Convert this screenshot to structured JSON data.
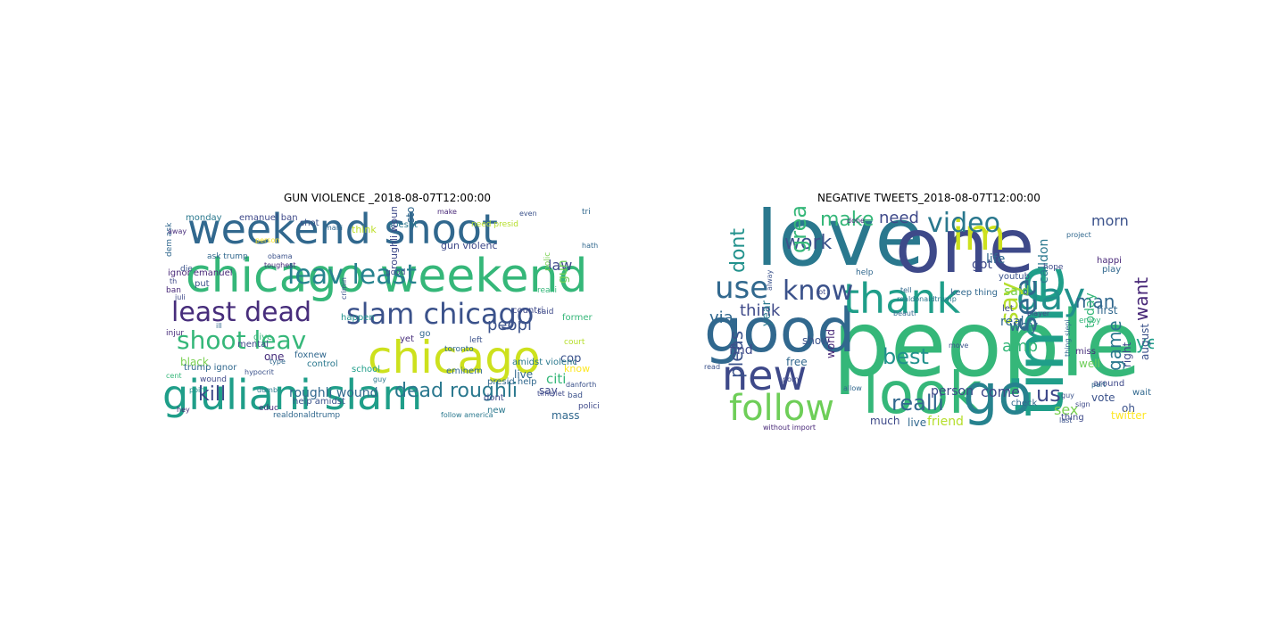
{
  "panels": [
    {
      "title": "GUN VIOLENCE _2018-08-07T12:00:00",
      "words": [
        {
          "t": "weekend shoot",
          "c": "#31688e"
        },
        {
          "t": "chicago weekend",
          "c": "#35b779"
        },
        {
          "t": "chicago",
          "c": "#cde11d"
        },
        {
          "t": "giuliani slam",
          "c": "#1f9e89"
        },
        {
          "t": "slam chicago",
          "c": "#3b528b"
        },
        {
          "t": "leav least",
          "c": "#26828e"
        },
        {
          "t": "least dead",
          "c": "#472d7b"
        },
        {
          "t": "shoot leav",
          "c": "#35b779"
        },
        {
          "t": "dead roughli",
          "c": "#2a788e"
        },
        {
          "t": "kill",
          "c": "#3e4989"
        },
        {
          "t": "roughli wound",
          "c": "#31688e"
        },
        {
          "t": "peopl",
          "c": "#3b528b"
        },
        {
          "t": "law",
          "c": "#3e4989"
        },
        {
          "t": "gun",
          "c": "#6ece58"
        },
        {
          "t": "cop",
          "c": "#3b528b"
        },
        {
          "t": "citi",
          "c": "#35b779"
        },
        {
          "t": "black",
          "c": "#7ad151"
        },
        {
          "t": "happen",
          "c": "#21918c"
        },
        {
          "t": "control",
          "c": "#2a788e"
        },
        {
          "t": "foxnew",
          "c": "#31688e"
        },
        {
          "t": "one",
          "c": "#472d7b"
        },
        {
          "t": "school",
          "c": "#1f9e89"
        },
        {
          "t": "live",
          "c": "#31688e"
        },
        {
          "t": "say",
          "c": "#3e4989"
        },
        {
          "t": "mass",
          "c": "#31688e"
        },
        {
          "t": "monday",
          "c": "#2a788e"
        },
        {
          "t": "emanuel ban",
          "c": "#3e4989"
        },
        {
          "t": "shot",
          "c": "#3b528b"
        },
        {
          "t": "think",
          "c": "#bddf26"
        },
        {
          "t": "doesnt",
          "c": "#2a788e"
        },
        {
          "t": "need presid",
          "c": "#b5de2b"
        },
        {
          "t": "stop",
          "c": "#31688e"
        },
        {
          "t": "gun violenc",
          "c": "#3e4989"
        },
        {
          "t": "ask trump",
          "c": "#31688e"
        },
        {
          "t": "obama",
          "c": "#3b528b"
        },
        {
          "t": "toughest",
          "c": "#472d7b"
        },
        {
          "t": "ignor emanuel",
          "c": "#482878"
        },
        {
          "t": "put",
          "c": "#3b528b"
        },
        {
          "t": "give",
          "c": "#35b779"
        },
        {
          "t": "mental",
          "c": "#3e4989"
        },
        {
          "t": "trump ignor",
          "c": "#31688e"
        },
        {
          "t": "wound",
          "c": "#3e4989"
        },
        {
          "t": "help amidst",
          "c": "#3b528b"
        },
        {
          "t": "presid help",
          "c": "#31688e"
        },
        {
          "t": "amidst violenc",
          "c": "#2a788e"
        },
        {
          "t": "yet",
          "c": "#472d7b"
        },
        {
          "t": "toronto",
          "c": "#31688e"
        },
        {
          "t": "left",
          "c": "#3b528b"
        },
        {
          "t": "countri",
          "c": "#3e4989"
        },
        {
          "t": "former",
          "c": "#35b779"
        },
        {
          "t": "eminem",
          "c": "#31688e"
        },
        {
          "t": "dont",
          "c": "#3e4989"
        },
        {
          "t": "new",
          "c": "#2a788e"
        },
        {
          "t": "realli",
          "c": "#35b779"
        },
        {
          "t": "know",
          "c": "#fde725"
        },
        {
          "t": "roughli wounded",
          "c": "#3e4989"
        },
        {
          "t": "dem ask",
          "c": "#31688e"
        },
        {
          "t": "die",
          "c": "#3b528b"
        },
        {
          "t": "ban",
          "c": "#482878"
        },
        {
          "t": "injur",
          "c": "#472d7b"
        },
        {
          "t": "go",
          "c": "#31688e"
        },
        {
          "t": "said",
          "c": "#3e4989"
        },
        {
          "t": "bad",
          "c": "#3b528b"
        },
        {
          "t": "good",
          "c": "#3e4989"
        },
        {
          "t": "educ",
          "c": "#472d7b"
        },
        {
          "t": "realdonaldtrump",
          "c": "#31688e"
        },
        {
          "t": "dumb",
          "c": "#2a788e"
        },
        {
          "t": "hypocrit",
          "c": "#3b528b"
        },
        {
          "t": "point",
          "c": "#21918c"
        },
        {
          "t": "polici",
          "c": "#3e4989"
        },
        {
          "t": "hey",
          "c": "#482878"
        },
        {
          "t": "type",
          "c": "#31688e"
        },
        {
          "t": "time let",
          "c": "#3e4989"
        },
        {
          "t": "cent",
          "c": "#35b779"
        },
        {
          "t": "danforth",
          "c": "#3b528b"
        },
        {
          "t": "follow america",
          "c": "#2a788e"
        },
        {
          "t": "tri",
          "c": "#31688e"
        },
        {
          "t": "th",
          "c": "#3e4989"
        },
        {
          "t": "mani",
          "c": "#31688e"
        },
        {
          "t": "make",
          "c": "#482878"
        },
        {
          "t": "crimin",
          "c": "#3b528b"
        },
        {
          "t": "ill",
          "c": "#31688e"
        },
        {
          "t": "guy",
          "c": "#2a788e"
        },
        {
          "t": "polic",
          "c": "#7ad151"
        },
        {
          "t": "juli",
          "c": "#3e4989"
        },
        {
          "t": "hath",
          "c": "#31688e"
        },
        {
          "t": "court",
          "c": "#b5de2b"
        },
        {
          "t": "person",
          "c": "#fde725"
        },
        {
          "t": "even",
          "c": "#3b528b"
        },
        {
          "t": "away",
          "c": "#472d7b"
        }
      ]
    },
    {
      "title": "NEGATIVE TWEETS_2018-08-07T12:00:00",
      "words": [
        {
          "t": "love",
          "c": "#2a788e"
        },
        {
          "t": "one",
          "c": "#3e4989"
        },
        {
          "t": "people",
          "c": "#35b779"
        },
        {
          "t": "good",
          "c": "#31688e"
        },
        {
          "t": "time",
          "c": "#1f9e89"
        },
        {
          "t": "look",
          "c": "#35b779"
        },
        {
          "t": "new",
          "c": "#3e4989"
        },
        {
          "t": "thank",
          "c": "#1f9e89"
        },
        {
          "t": "go",
          "c": "#26828e"
        },
        {
          "t": "follow",
          "c": "#6ece58"
        },
        {
          "t": "im",
          "c": "#cde11d"
        },
        {
          "t": "day",
          "c": "#21918c"
        },
        {
          "t": "see",
          "c": "#31688e"
        },
        {
          "t": "know",
          "c": "#3b528b"
        },
        {
          "t": "use",
          "c": "#31688e"
        },
        {
          "t": "video",
          "c": "#2a788e"
        },
        {
          "t": "make",
          "c": "#35b779"
        },
        {
          "t": "need",
          "c": "#3e4989"
        },
        {
          "t": "dont",
          "c": "#21918c"
        },
        {
          "t": "work",
          "c": "#3b528b"
        },
        {
          "t": "great",
          "c": "#35b779"
        },
        {
          "t": "think",
          "c": "#3e4989"
        },
        {
          "t": "via",
          "c": "#31688e"
        },
        {
          "t": "say",
          "c": "#b5de2b"
        },
        {
          "t": "want",
          "c": "#482878"
        },
        {
          "t": "man",
          "c": "#31688e"
        },
        {
          "t": "best",
          "c": "#21918c"
        },
        {
          "t": "realli",
          "c": "#31688e"
        },
        {
          "t": "come",
          "c": "#3e4989"
        },
        {
          "t": "pleas",
          "c": "#3b528b"
        },
        {
          "t": "year",
          "c": "#2a788e"
        },
        {
          "t": "find",
          "c": "#3e4989"
        },
        {
          "t": "got",
          "c": "#3e4989"
        },
        {
          "t": "life",
          "c": "#31688e"
        },
        {
          "t": "said",
          "c": "#7ad151"
        },
        {
          "t": "morn",
          "c": "#3b528b"
        },
        {
          "t": "amp",
          "c": "#35b779"
        },
        {
          "t": "way",
          "c": "#31688e"
        },
        {
          "t": "us",
          "c": "#3e4989"
        },
        {
          "t": "sex",
          "c": "#7ad151"
        },
        {
          "t": "vote",
          "c": "#3b528b"
        },
        {
          "t": "game",
          "c": "#2a788e"
        },
        {
          "t": "ye",
          "c": "#1f9e89"
        },
        {
          "t": "well",
          "c": "#6ece58"
        },
        {
          "t": "person",
          "c": "#3e4989"
        },
        {
          "t": "live",
          "c": "#31688e"
        },
        {
          "t": "friend",
          "c": "#b5de2b"
        },
        {
          "t": "much",
          "c": "#3e4989"
        },
        {
          "t": "free",
          "c": "#31688e"
        },
        {
          "t": "show",
          "c": "#3b528b"
        },
        {
          "t": "world",
          "c": "#482878"
        },
        {
          "t": "today",
          "c": "#35b779"
        },
        {
          "t": "first",
          "c": "#31688e"
        },
        {
          "t": "right",
          "c": "#3e4989"
        },
        {
          "t": "august",
          "c": "#3b528b"
        },
        {
          "t": "calldon",
          "c": "#2a788e"
        },
        {
          "t": "real",
          "c": "#31688e"
        },
        {
          "t": "let",
          "c": "#3e4989"
        },
        {
          "t": "keep thing",
          "c": "#31688e"
        },
        {
          "t": "youtub",
          "c": "#3b528b"
        },
        {
          "t": "hope",
          "c": "#3e4989"
        },
        {
          "t": "happi",
          "c": "#482878"
        },
        {
          "t": "play",
          "c": "#31688e"
        },
        {
          "t": "enjoy",
          "c": "#35b779"
        },
        {
          "t": "around",
          "c": "#3e4989"
        },
        {
          "t": "wait",
          "c": "#31688e"
        },
        {
          "t": "oh",
          "c": "#3b528b"
        },
        {
          "t": "twitter",
          "c": "#fde725"
        },
        {
          "t": "thing",
          "c": "#3e4989"
        },
        {
          "t": "check",
          "c": "#31688e"
        },
        {
          "t": "miss",
          "c": "#472d7b"
        },
        {
          "t": "move",
          "c": "#3b528b"
        },
        {
          "t": "realdonaldtrump",
          "c": "#2a788e"
        },
        {
          "t": "beauti",
          "c": "#31688e"
        },
        {
          "t": "porn",
          "c": "#3e4989"
        },
        {
          "t": "read",
          "c": "#3b528b"
        },
        {
          "t": "allow",
          "c": "#31688e"
        },
        {
          "t": "without import",
          "c": "#482878"
        },
        {
          "t": "welcom",
          "c": "#3e4989"
        },
        {
          "t": "part",
          "c": "#31688e"
        },
        {
          "t": "last",
          "c": "#3b528b"
        },
        {
          "t": "lot",
          "c": "#3e4989"
        },
        {
          "t": "help",
          "c": "#31688e"
        },
        {
          "t": "done",
          "c": "#482878"
        },
        {
          "t": "alway",
          "c": "#3b528b"
        },
        {
          "t": "sign",
          "c": "#3e4989"
        },
        {
          "t": "thing siepi",
          "c": "#31688e"
        },
        {
          "t": "guy",
          "c": "#3b528b"
        },
        {
          "t": "tell",
          "c": "#31688e"
        },
        {
          "t": "player",
          "c": "#3e4989"
        },
        {
          "t": "project",
          "c": "#31688e"
        }
      ]
    }
  ]
}
